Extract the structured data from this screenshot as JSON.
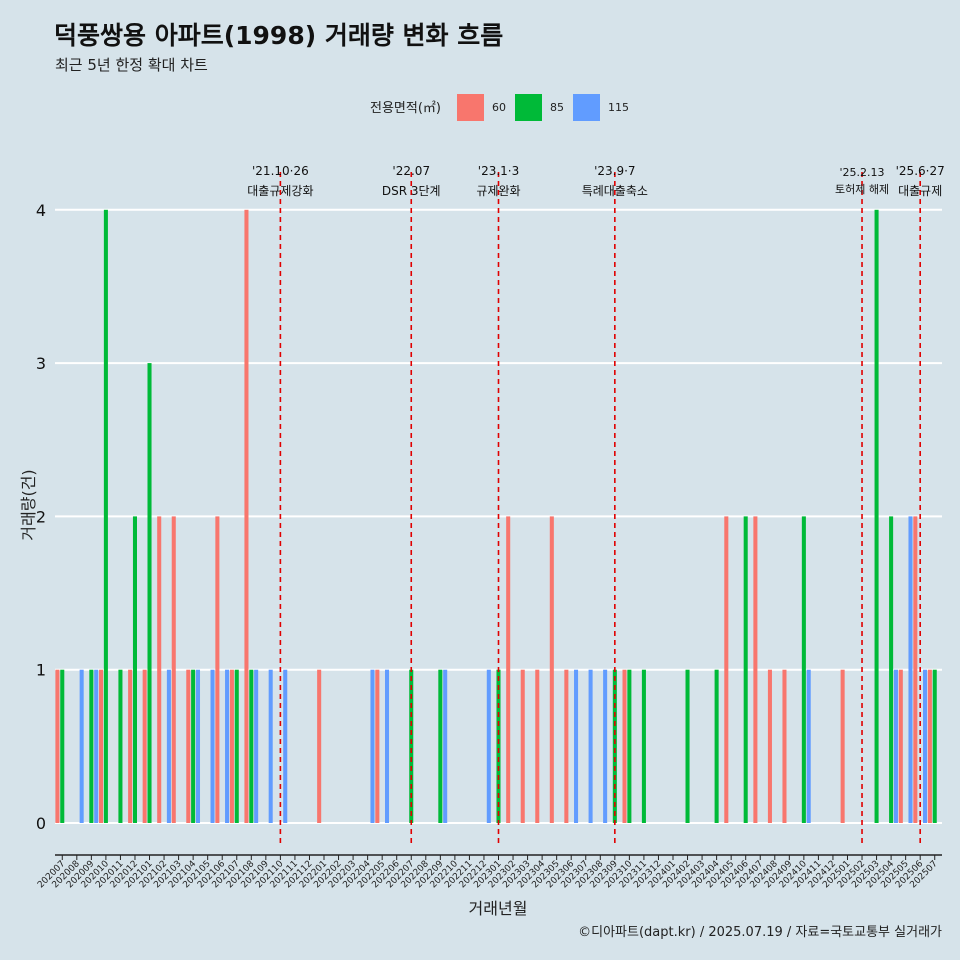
{
  "header": {
    "title": "덕풍쌍용 아파트(1998) 거래량 변화 흐름",
    "subtitle": "최근 5년 한정 확대 차트"
  },
  "caption": "©디아파트(dapt.kr) / 2025.07.19 / 자료=국토교통부 실거래가",
  "colors": {
    "background": "#d6e3ea",
    "60": "#f8766d",
    "85": "#00ba38",
    "115": "#619cff",
    "event_line": "#e00000",
    "grid": "#ffffff"
  },
  "chart_data": {
    "type": "bar",
    "xlabel": "거래년월",
    "ylabel": "거래량(건)",
    "ylim": [
      0,
      4
    ],
    "yticks": [
      0,
      1,
      2,
      3,
      4
    ],
    "legend": {
      "title": "전용면적(㎡)",
      "position": "top",
      "entries": [
        "60",
        "85",
        "115"
      ]
    },
    "grid": true,
    "categories": [
      "202007",
      "202008",
      "202009",
      "202010",
      "202011",
      "202012",
      "202101",
      "202102",
      "202103",
      "202104",
      "202105",
      "202106",
      "202107",
      "202108",
      "202109",
      "202110",
      "202111",
      "202112",
      "202201",
      "202202",
      "202203",
      "202204",
      "202205",
      "202206",
      "202207",
      "202208",
      "202209",
      "202210",
      "202211",
      "202212",
      "202301",
      "202302",
      "202303",
      "202304",
      "202305",
      "202306",
      "202307",
      "202308",
      "202309",
      "202310",
      "202311",
      "202312",
      "202401",
      "202402",
      "202403",
      "202404",
      "202405",
      "202406",
      "202407",
      "202408",
      "202409",
      "202410",
      "202411",
      "202412",
      "202501",
      "202502",
      "202503",
      "202504",
      "202505",
      "202506",
      "202507"
    ],
    "series": [
      {
        "name": "60",
        "values": [
          1,
          0,
          0,
          1,
          0,
          1,
          1,
          2,
          2,
          1,
          0,
          2,
          1,
          4,
          0,
          0,
          0,
          0,
          1,
          0,
          0,
          0,
          1,
          0,
          0,
          0,
          0,
          0,
          0,
          0,
          0,
          2,
          1,
          1,
          2,
          1,
          0,
          0,
          0,
          1,
          0,
          0,
          0,
          0,
          0,
          0,
          2,
          0,
          2,
          1,
          1,
          0,
          0,
          0,
          1,
          0,
          0,
          0,
          1,
          2,
          1
        ]
      },
      {
        "name": "85",
        "values": [
          1,
          0,
          1,
          4,
          1,
          2,
          3,
          0,
          0,
          1,
          0,
          0,
          1,
          1,
          0,
          0,
          0,
          0,
          0,
          0,
          0,
          0,
          0,
          0,
          1,
          0,
          1,
          0,
          0,
          0,
          1,
          0,
          0,
          0,
          0,
          0,
          0,
          0,
          1,
          1,
          1,
          0,
          0,
          1,
          0,
          1,
          0,
          2,
          0,
          0,
          0,
          2,
          0,
          0,
          0,
          0,
          4,
          2,
          0,
          0,
          1
        ]
      },
      {
        "name": "115",
        "values": [
          0,
          1,
          1,
          0,
          0,
          0,
          0,
          1,
          0,
          1,
          1,
          1,
          0,
          1,
          1,
          1,
          0,
          0,
          0,
          0,
          0,
          1,
          1,
          0,
          0,
          0,
          1,
          0,
          0,
          1,
          0,
          0,
          0,
          0,
          0,
          1,
          1,
          1,
          0,
          0,
          0,
          0,
          0,
          0,
          0,
          0,
          0,
          0,
          0,
          0,
          0,
          1,
          0,
          0,
          0,
          0,
          0,
          1,
          2,
          1,
          0
        ]
      }
    ],
    "events": [
      {
        "at": "202110",
        "date": "'21.10·26",
        "label": "대출규제강화"
      },
      {
        "at": "202207",
        "date": "'22.07",
        "label": "DSR 3단계"
      },
      {
        "at": "202301",
        "date": "'23.1·3",
        "label": "규제완화"
      },
      {
        "at": "202309",
        "date": "'23.9·7",
        "label": "특례대출축소"
      },
      {
        "at": "202502",
        "date": "'25.2.13",
        "label": "토허제 해제"
      },
      {
        "at": "202506",
        "date": "'25.6·27",
        "label": "대출규제"
      }
    ]
  }
}
